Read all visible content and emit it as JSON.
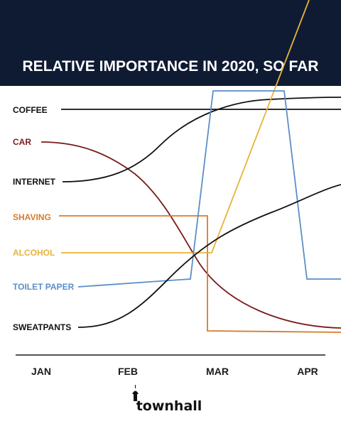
{
  "header": {
    "title": "RELATIVE IMPORTANCE IN 2020, SO FAR",
    "background_color": "#0f1b33"
  },
  "logo": {
    "text": "townhall"
  },
  "chart_data": {
    "type": "line",
    "title": "RELATIVE IMPORTANCE IN 2020, SO FAR",
    "x_ticks": [
      "JAN",
      "FEB",
      "MAR",
      "APR"
    ],
    "x_range": [
      "JAN",
      "APR"
    ],
    "y_axis": "relative importance (unlabeled, no ticks)",
    "grid": false,
    "legend": "inline labels at left end of each series",
    "series": [
      {
        "name": "COFFEE",
        "color": "#111111",
        "shape": "flat line, constant importance from Jan through April"
      },
      {
        "name": "CAR",
        "color": "#7a1c1c",
        "shape": "high in January, falls steadily through February and March, ends lowest in April"
      },
      {
        "name": "INTERNET",
        "color": "#111111",
        "shape": "moderate in January, rises through February and March to near the top"
      },
      {
        "name": "SHAVING",
        "color": "#d97a2b",
        "shape": "flat mid-level until early March, then drops sharply to near zero"
      },
      {
        "name": "ALCOHOL",
        "color": "#e8b33a",
        "shape": "flat mid-level until early March, then climbs steeply off the top of the chart"
      },
      {
        "name": "TOILET PAPER",
        "color": "#5b8fc7",
        "shape": "low and rising slightly until late February, spikes to the top for March, falls back to low level"
      },
      {
        "name": "SWEATPANTS",
        "color": "#111111",
        "shape": "lowest in January, rising steadily through March and April"
      }
    ]
  }
}
